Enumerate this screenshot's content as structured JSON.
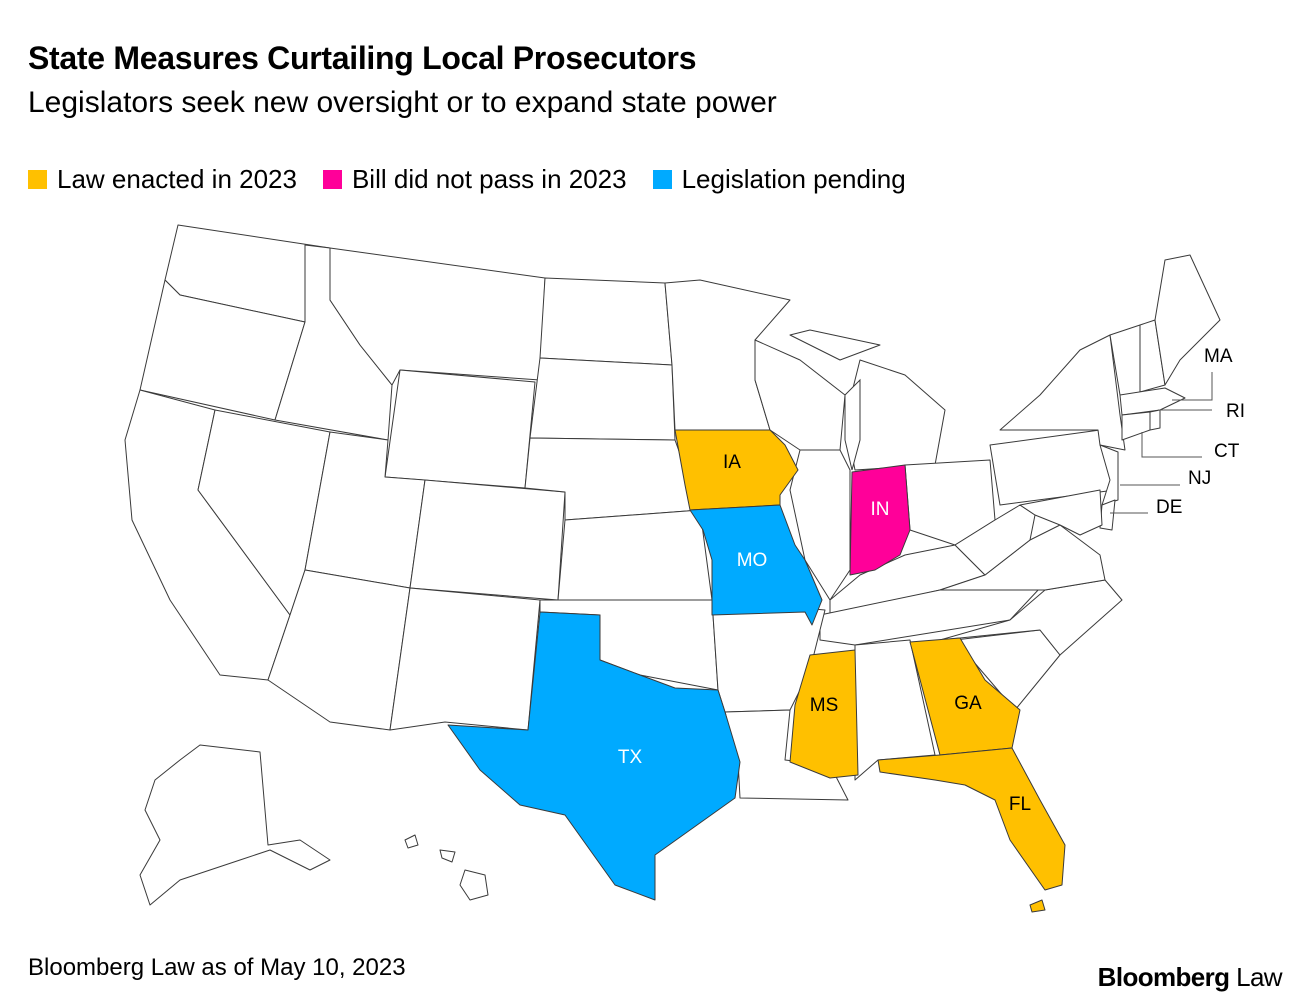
{
  "title": "State Measures Curtailing Local Prosecutors",
  "subtitle": "Legislators seek new oversight or to expand state power",
  "legend": [
    {
      "label": "Law enacted in 2023",
      "color": "#ffc000"
    },
    {
      "label": "Bill did not pass in 2023",
      "color": "#ff0099"
    },
    {
      "label": "Legislation pending",
      "color": "#00aaff"
    }
  ],
  "colors": {
    "enacted": "#ffc000",
    "failed": "#ff0099",
    "pending": "#00aaff",
    "none": "#ffffff"
  },
  "states": {
    "IA": {
      "label": "IA",
      "status": "enacted"
    },
    "IN": {
      "label": "IN",
      "status": "failed"
    },
    "MO": {
      "label": "MO",
      "status": "pending"
    },
    "TX": {
      "label": "TX",
      "status": "pending"
    },
    "MS": {
      "label": "MS",
      "status": "enacted"
    },
    "GA": {
      "label": "GA",
      "status": "enacted"
    },
    "FL": {
      "label": "FL",
      "status": "enacted"
    }
  },
  "callouts": {
    "MA": "MA",
    "RI": "RI",
    "CT": "CT",
    "NJ": "NJ",
    "DE": "DE"
  },
  "footer": "Bloomberg Law as of May 10, 2023",
  "brand": {
    "bold": "Bloomberg",
    "light": " Law"
  }
}
